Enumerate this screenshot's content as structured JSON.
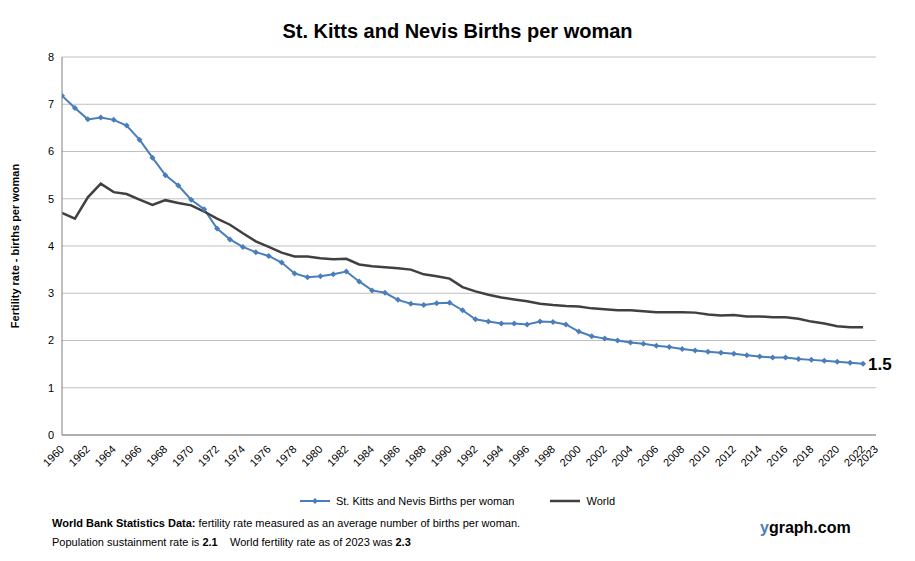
{
  "chart_data": {
    "type": "line",
    "title": "St. Kitts and Nevis Births per woman",
    "y_label": "Fertility rate  - births per woman",
    "x": [
      1960,
      1961,
      1962,
      1963,
      1964,
      1965,
      1966,
      1967,
      1968,
      1969,
      1970,
      1971,
      1972,
      1973,
      1974,
      1975,
      1976,
      1977,
      1978,
      1979,
      1980,
      1981,
      1982,
      1983,
      1984,
      1985,
      1986,
      1987,
      1988,
      1989,
      1990,
      1991,
      1992,
      1993,
      1994,
      1995,
      1996,
      1997,
      1998,
      1999,
      2000,
      2001,
      2002,
      2003,
      2004,
      2005,
      2006,
      2007,
      2008,
      2009,
      2010,
      2011,
      2012,
      2013,
      2014,
      2015,
      2016,
      2017,
      2018,
      2019,
      2020,
      2021,
      2022
    ],
    "series": [
      {
        "name": "St. Kitts and Nevis Births per woman",
        "color": "#4a7ebb",
        "marker": "diamond",
        "values": [
          7.18,
          6.92,
          6.68,
          6.72,
          6.67,
          6.55,
          6.25,
          5.87,
          5.5,
          5.28,
          4.98,
          4.78,
          4.37,
          4.14,
          3.98,
          3.87,
          3.79,
          3.65,
          3.42,
          3.34,
          3.36,
          3.4,
          3.46,
          3.25,
          3.06,
          3.01,
          2.86,
          2.78,
          2.75,
          2.79,
          2.8,
          2.64,
          2.45,
          2.4,
          2.36,
          2.36,
          2.34,
          2.4,
          2.39,
          2.34,
          2.19,
          2.09,
          2.04,
          2.0,
          1.96,
          1.93,
          1.89,
          1.86,
          1.82,
          1.79,
          1.76,
          1.74,
          1.72,
          1.69,
          1.66,
          1.64,
          1.64,
          1.61,
          1.59,
          1.57,
          1.55,
          1.53,
          1.51
        ]
      },
      {
        "name": "World",
        "color": "#404040",
        "marker": "none",
        "values": [
          4.7,
          4.58,
          5.03,
          5.32,
          5.14,
          5.1,
          4.98,
          4.87,
          4.97,
          4.91,
          4.86,
          4.73,
          4.58,
          4.45,
          4.27,
          4.1,
          3.98,
          3.86,
          3.78,
          3.78,
          3.74,
          3.72,
          3.73,
          3.61,
          3.57,
          3.55,
          3.53,
          3.5,
          3.4,
          3.36,
          3.31,
          3.13,
          3.04,
          2.97,
          2.91,
          2.87,
          2.83,
          2.78,
          2.75,
          2.73,
          2.72,
          2.68,
          2.66,
          2.64,
          2.64,
          2.62,
          2.6,
          2.6,
          2.6,
          2.59,
          2.55,
          2.53,
          2.54,
          2.51,
          2.51,
          2.49,
          2.49,
          2.46,
          2.4,
          2.36,
          2.3,
          2.28,
          2.28
        ]
      }
    ],
    "xlim": [
      1960,
      2023
    ],
    "xticks": [
      1960,
      1962,
      1964,
      1966,
      1968,
      1970,
      1972,
      1974,
      1976,
      1978,
      1980,
      1982,
      1984,
      1986,
      1988,
      1990,
      1992,
      1994,
      1996,
      1998,
      2000,
      2002,
      2004,
      2006,
      2008,
      2010,
      2012,
      2014,
      2016,
      2018,
      2020,
      2022,
      2023
    ],
    "ylim": [
      0,
      8
    ],
    "yticks": [
      0,
      1,
      2,
      3,
      4,
      5,
      6,
      7,
      8
    ],
    "grid": true,
    "legend": "bottom",
    "annotations": [
      {
        "text": "1.5",
        "x": 2022,
        "y": 1.51
      }
    ],
    "footer": {
      "source_label": "World Bank Statistics Data:",
      "source_text": "fertility rate measured as an average number of births per woman.",
      "sustainment_text": "Population sustainment rate is",
      "sustainment_rate": 2.1,
      "world_text": "World fertility rate as of 2023 was",
      "world_rate": 2.3
    },
    "watermark": "ygraph.com"
  }
}
